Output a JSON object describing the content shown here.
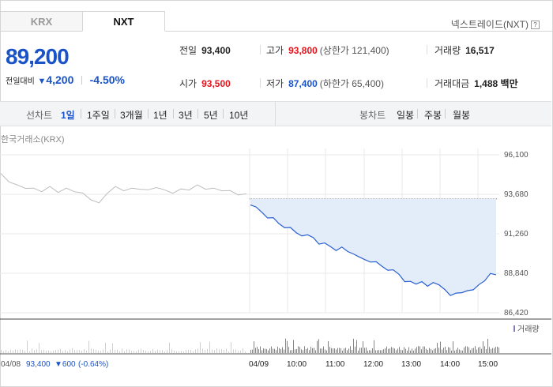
{
  "tabs": [
    {
      "label": "KRX"
    },
    {
      "label": "NXT"
    }
  ],
  "header": {
    "nxt_link": "넥스트레이드(NXT)",
    "help": "?"
  },
  "quote": {
    "price": "89,200",
    "change_label": "전일대비",
    "change_amount": "4,200",
    "change_pct": "-4.50%",
    "stats": {
      "prev_close": {
        "label": "전일",
        "value": "93,400"
      },
      "high": {
        "label": "고가",
        "value": "93,800",
        "sub": "(상한가 121,400)"
      },
      "volume": {
        "label": "거래량",
        "value": "16,517"
      },
      "open": {
        "label": "시가",
        "value": "93,500"
      },
      "low": {
        "label": "저가",
        "value": "87,400",
        "sub": "(하한가 65,400)"
      },
      "turnover": {
        "label": "거래대금",
        "value": "1,488 백만"
      }
    }
  },
  "toolbar": {
    "line_label": "선차트",
    "periods": [
      "1일",
      "1주일",
      "3개월",
      "1년",
      "3년",
      "5년",
      "10년"
    ],
    "candle_label": "봉차트",
    "candles": [
      "일봉",
      "주봉",
      "월봉"
    ]
  },
  "chart_data": {
    "type": "line",
    "source_label": "한국거래소(KRX)",
    "y_ticks": [
      "96,100",
      "93,680",
      "91,260",
      "88,840",
      "86,420"
    ],
    "ylim": [
      86420,
      96100
    ],
    "reference_price": 93400,
    "volume_legend": "거래량",
    "x_ticks": [
      "04/09",
      "10:00",
      "11:00",
      "12:00",
      "13:00",
      "14:00",
      "15:00"
    ],
    "prev_day": {
      "date": "04/08",
      "close": "93,400",
      "change": "600",
      "change_pct": "(-0.64%)"
    },
    "prev_day_series": [
      94900,
      94500,
      94200,
      94100,
      94000,
      93900,
      94100,
      93850,
      94000,
      93900,
      93700,
      93400,
      93100,
      93800,
      94100,
      93950,
      94000,
      94050,
      93900,
      94150,
      93900,
      93800,
      93950,
      94000,
      94200,
      94050,
      94000,
      93950,
      93850,
      93700,
      93650
    ],
    "today_series": [
      93100,
      92850,
      92600,
      92300,
      92200,
      91900,
      91700,
      91600,
      91350,
      91200,
      91150,
      91050,
      90700,
      90650,
      90500,
      90300,
      90400,
      90200,
      90100,
      89800,
      89700,
      89600,
      89500,
      89300,
      89100,
      89000,
      88800,
      88400,
      88300,
      88200,
      88400,
      88000,
      88300,
      88200,
      87800,
      87500,
      87700,
      87600,
      87800,
      87900,
      88100,
      88400,
      88900,
      88700
    ]
  }
}
